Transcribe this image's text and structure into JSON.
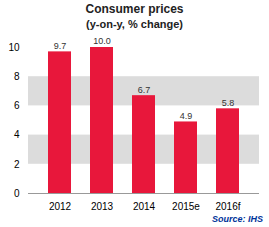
{
  "chart_data": {
    "type": "bar",
    "title": "Consumer prices",
    "subtitle": "(y-on-y, % change)",
    "categories": [
      "2012",
      "2013",
      "2014",
      "2015e",
      "2016f"
    ],
    "values": [
      9.7,
      10.0,
      6.7,
      4.9,
      5.8
    ],
    "value_labels": [
      "9.7",
      "10.0",
      "6.7",
      "4.9",
      "5.8"
    ],
    "data_labels": true,
    "color": "#e8173b",
    "ylim": [
      0,
      10
    ],
    "yticks": [
      0,
      2,
      4,
      6,
      8,
      10
    ],
    "grid": true,
    "annotations": [
      {
        "text": "Source: IHS",
        "color": "#003399"
      }
    ]
  }
}
